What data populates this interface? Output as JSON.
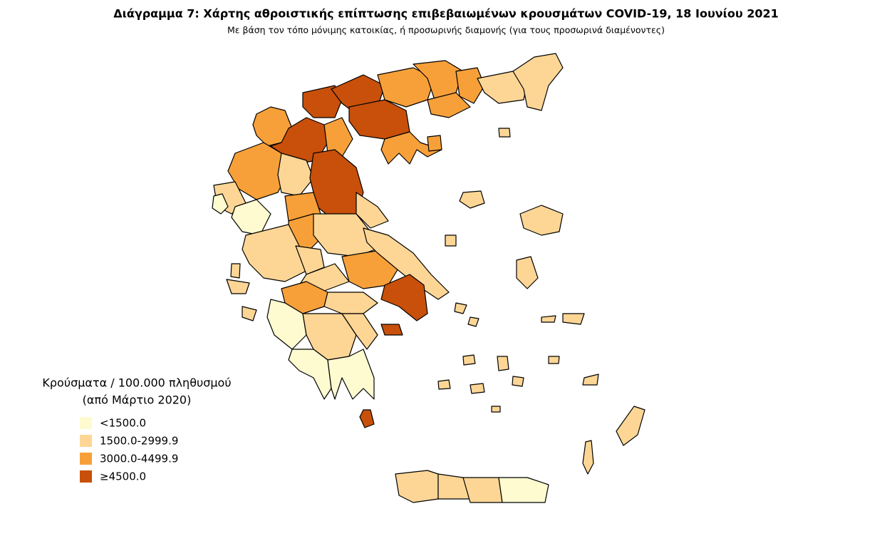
{
  "header": {
    "title": "Διάγραμμα 7: Χάρτης αθροιστικής επίπτωσης επιβεβαιωμένων κρουσμάτων COVID-19, 18 Ιουνίου 2021",
    "subtitle": "Με βάση τον τόπο μόνιμης κατοικίας, ή προσωρινής διαμονής (για τους προσωρινά διαμένοντες)"
  },
  "legend": {
    "title": [
      "Κρούσματα / 100.000 πληθυσμού",
      "(από Μάρτιο 2020)"
    ],
    "items": [
      {
        "label": "<1500.0",
        "color": "#fffbd1"
      },
      {
        "label": "1500.0-2999.9",
        "color": "#fdd696"
      },
      {
        "label": "3000.0-4499.9",
        "color": "#f7a03a"
      },
      {
        "label": "≥4500.0",
        "color": "#c8500a"
      }
    ]
  }
}
